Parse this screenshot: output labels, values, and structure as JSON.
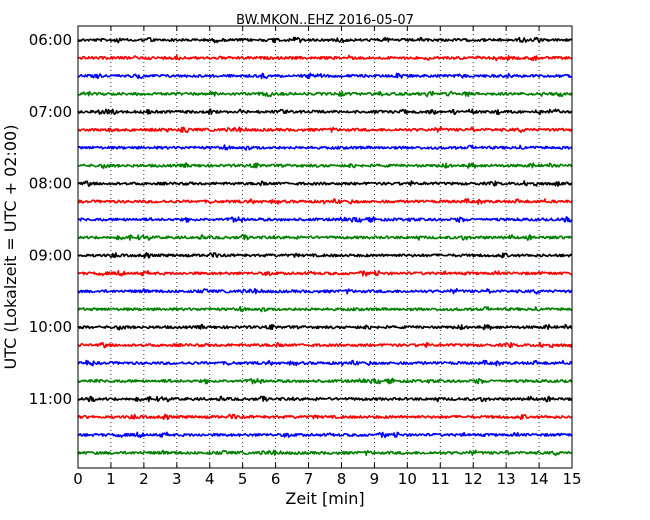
{
  "chart_data": {
    "type": "line",
    "title": "BW.MKON..EHZ 2016-05-07",
    "xlabel": "Zeit  [min]",
    "ylabel": "UTC (Lokalzeit = UTC + 02:00)",
    "xlim": [
      0,
      15
    ],
    "x_ticks": [
      "0",
      "1",
      "2",
      "3",
      "4",
      "5",
      "6",
      "7",
      "8",
      "9",
      "10",
      "11",
      "12",
      "13",
      "14",
      "15"
    ],
    "y_ticks": [
      "06:00",
      "07:00",
      "08:00",
      "09:00",
      "10:00",
      "11:00"
    ],
    "traces_start": "06:00",
    "trace_interval_minutes": 15,
    "trace_count": 24,
    "trace_colors": [
      "#000000",
      "#ff0000",
      "#0000ff",
      "#008000"
    ],
    "grid": "vertical dotted"
  }
}
